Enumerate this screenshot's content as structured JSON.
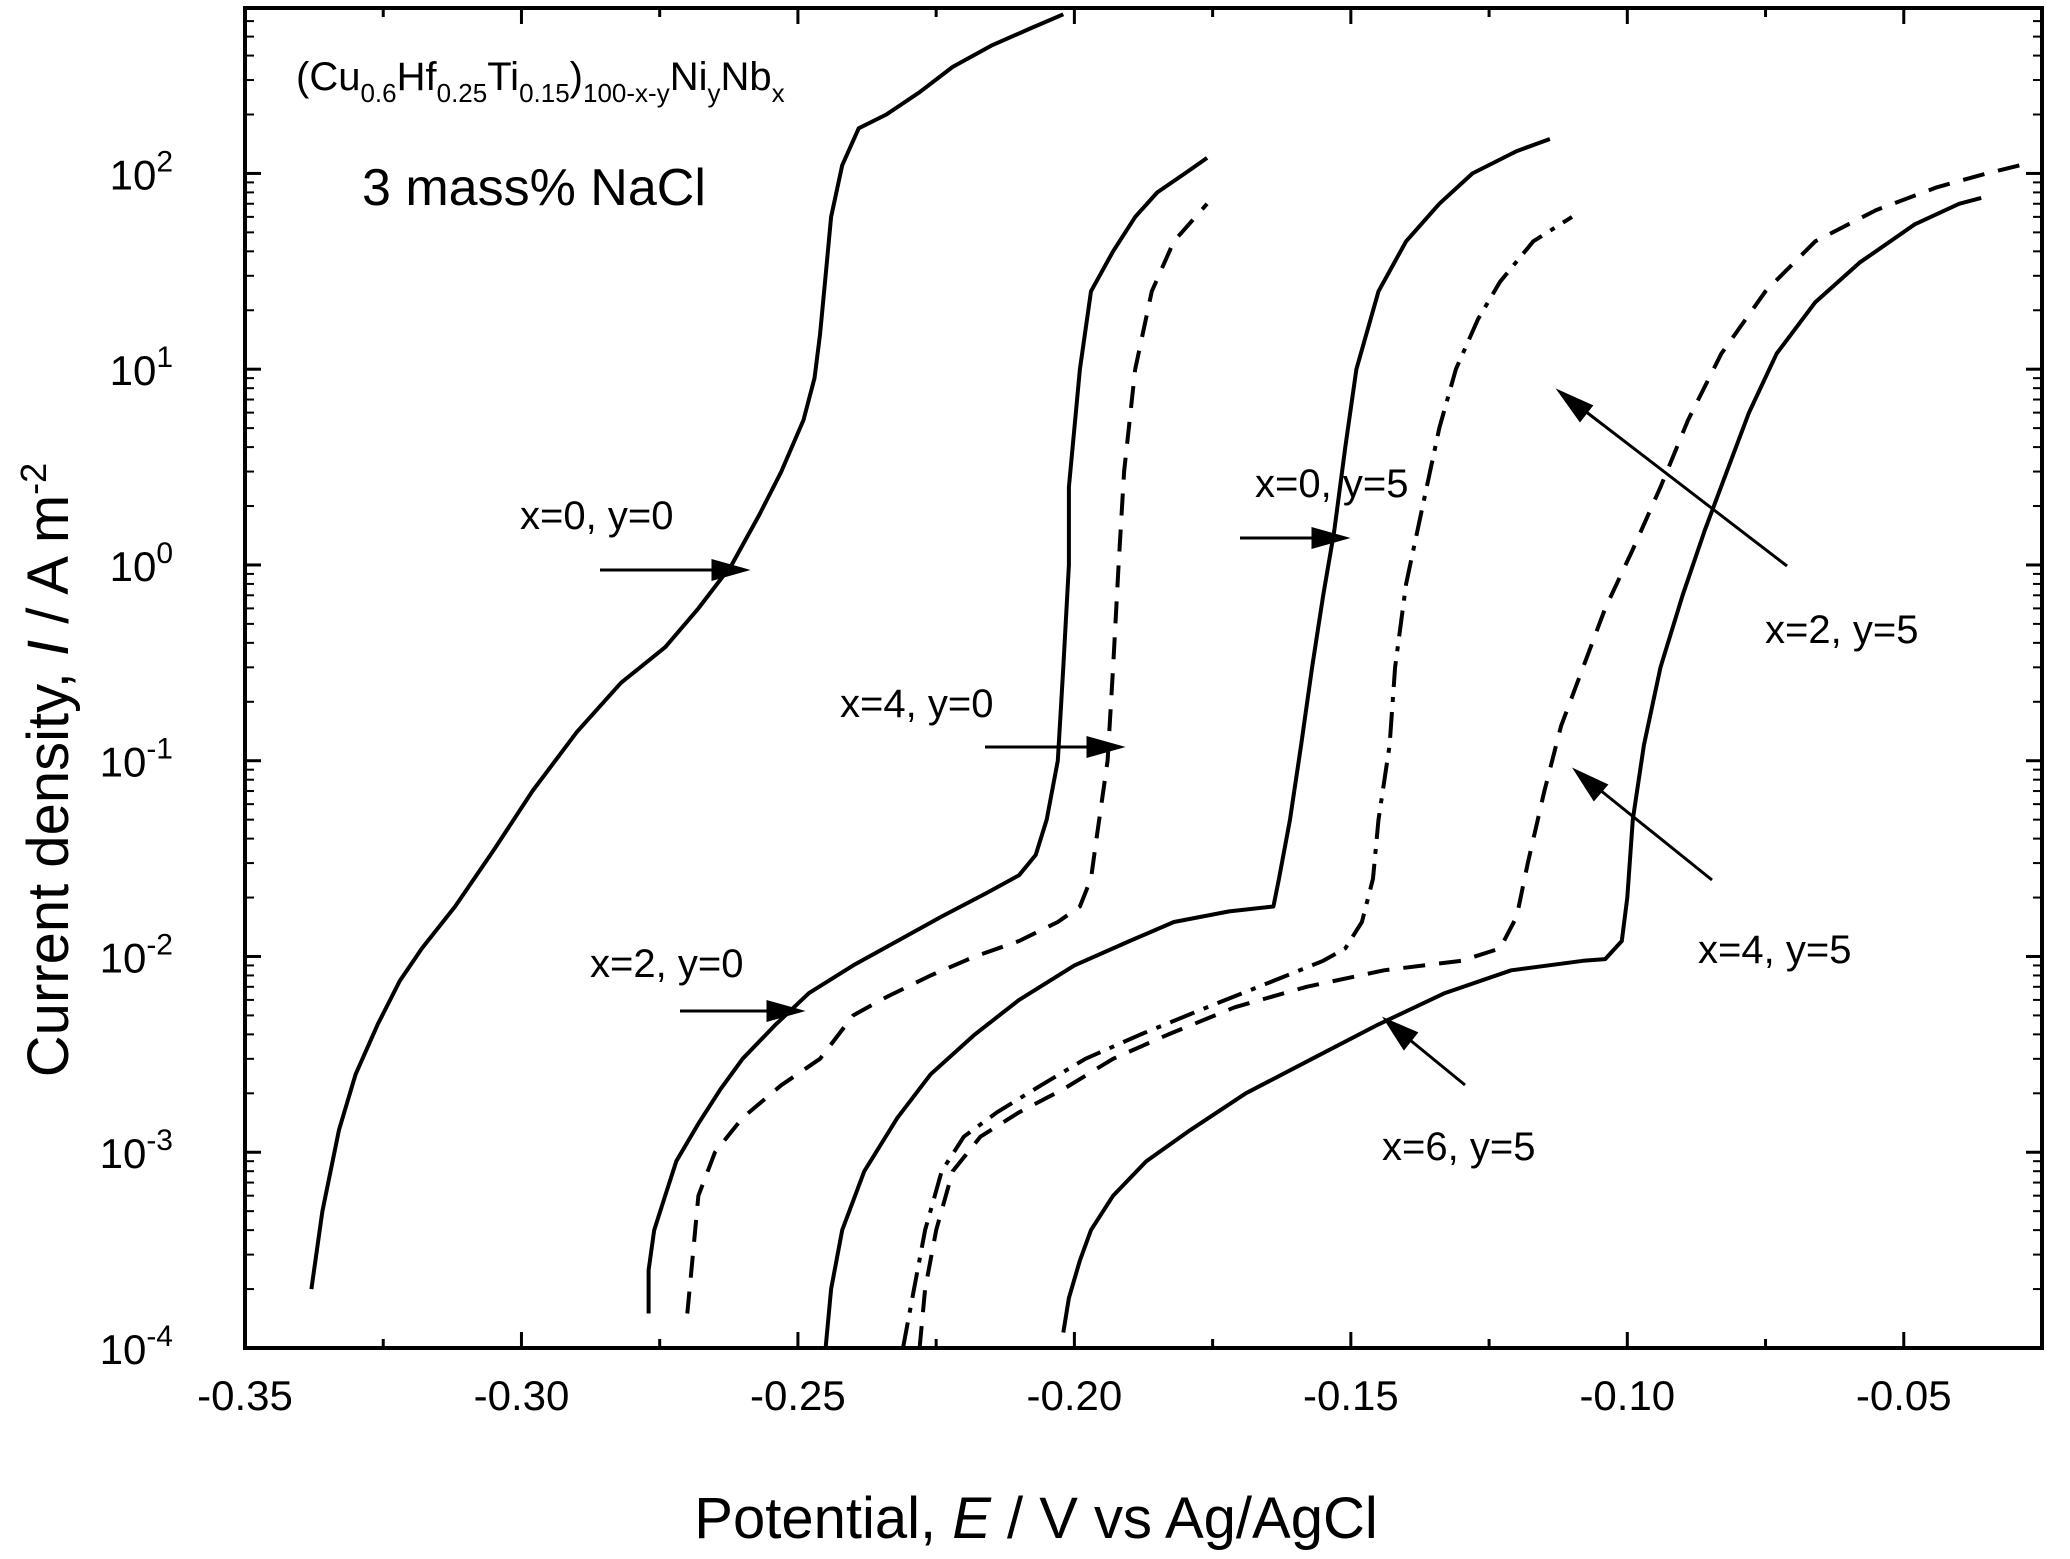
{
  "chart_data": {
    "type": "line",
    "title": "",
    "xlabel": "Potential, E / V vs Ag/AgCl",
    "ylabel": "Current density, I / A m-2",
    "xlim": [
      -0.35,
      -0.025
    ],
    "ylim": [
      0.0001,
      700
    ],
    "yscale": "log",
    "grid": false,
    "legend": "none",
    "x_ticks": [
      "-0.35",
      "-0.30",
      "-0.25",
      "-0.20",
      "-0.15",
      "-0.10",
      "-0.05"
    ],
    "x_tick_values": [
      -0.35,
      -0.3,
      -0.25,
      -0.2,
      -0.15,
      -0.1,
      -0.05
    ],
    "y_ticks": [
      {
        "base": "10",
        "exp": "-4",
        "value": 0.0001
      },
      {
        "base": "10",
        "exp": "-3",
        "value": 0.001
      },
      {
        "base": "10",
        "exp": "-2",
        "value": 0.01
      },
      {
        "base": "10",
        "exp": "-1",
        "value": 0.1
      },
      {
        "base": "10",
        "exp": "0",
        "value": 1
      },
      {
        "base": "10",
        "exp": "1",
        "value": 10
      },
      {
        "base": "10",
        "exp": "2",
        "value": 100
      }
    ],
    "annotations": {
      "composition": "(Cu0.6Hf0.25Ti0.15)100-x-yNiyNbx",
      "solution": "3 mass% NaCl",
      "labels": [
        "x=0, y=0",
        "x=4, y=0",
        "x=2, y=0",
        "x=0, y=5",
        "x=2, y=5",
        "x=4, y=5",
        "x=6, y=5"
      ]
    },
    "series": [
      {
        "id": "x0y0",
        "style": "solid",
        "points": [
          [
            -0.338,
            0.0002
          ],
          [
            -0.336,
            0.0005
          ],
          [
            -0.333,
            0.0013
          ],
          [
            -0.33,
            0.0025
          ],
          [
            -0.326,
            0.0045
          ],
          [
            -0.322,
            0.0075
          ],
          [
            -0.318,
            0.011
          ],
          [
            -0.312,
            0.018
          ],
          [
            -0.305,
            0.035
          ],
          [
            -0.298,
            0.07
          ],
          [
            -0.29,
            0.14
          ],
          [
            -0.282,
            0.25
          ],
          [
            -0.274,
            0.38
          ],
          [
            -0.268,
            0.6
          ],
          [
            -0.262,
            1.0
          ],
          [
            -0.257,
            1.8
          ],
          [
            -0.253,
            3.0
          ],
          [
            -0.249,
            5.5
          ],
          [
            -0.247,
            9
          ],
          [
            -0.246,
            15
          ],
          [
            -0.245,
            30
          ],
          [
            -0.244,
            60
          ],
          [
            -0.242,
            110
          ],
          [
            -0.239,
            170
          ],
          [
            -0.234,
            200
          ],
          [
            -0.228,
            260
          ],
          [
            -0.222,
            350
          ],
          [
            -0.215,
            450
          ],
          [
            -0.208,
            550
          ],
          [
            -0.202,
            650
          ]
        ]
      },
      {
        "id": "x4y0",
        "style": "solid",
        "points": [
          [
            -0.277,
            0.00015
          ],
          [
            -0.277,
            0.00025
          ],
          [
            -0.276,
            0.0004
          ],
          [
            -0.274,
            0.0006
          ],
          [
            -0.272,
            0.0009
          ],
          [
            -0.268,
            0.0014
          ],
          [
            -0.264,
            0.0021
          ],
          [
            -0.26,
            0.003
          ],
          [
            -0.254,
            0.0045
          ],
          [
            -0.248,
            0.0065
          ],
          [
            -0.24,
            0.009
          ],
          [
            -0.232,
            0.012
          ],
          [
            -0.224,
            0.016
          ],
          [
            -0.216,
            0.021
          ],
          [
            -0.21,
            0.026
          ],
          [
            -0.207,
            0.033
          ],
          [
            -0.205,
            0.05
          ],
          [
            -0.203,
            0.1
          ],
          [
            -0.202,
            0.3
          ],
          [
            -0.201,
            1.0
          ],
          [
            -0.201,
            2.5
          ],
          [
            -0.199,
            10
          ],
          [
            -0.197,
            25
          ],
          [
            -0.193,
            40
          ],
          [
            -0.189,
            60
          ],
          [
            -0.185,
            80
          ],
          [
            -0.18,
            100
          ],
          [
            -0.176,
            120
          ]
        ]
      },
      {
        "id": "x2y0",
        "style": "dashed",
        "points": [
          [
            -0.27,
            0.00015
          ],
          [
            -0.269,
            0.0003
          ],
          [
            -0.268,
            0.0006
          ],
          [
            -0.265,
            0.001
          ],
          [
            -0.26,
            0.0015
          ],
          [
            -0.253,
            0.0022
          ],
          [
            -0.246,
            0.003
          ],
          [
            -0.24,
            0.005
          ],
          [
            -0.234,
            0.0062
          ],
          [
            -0.226,
            0.008
          ],
          [
            -0.218,
            0.01
          ],
          [
            -0.21,
            0.012
          ],
          [
            -0.203,
            0.015
          ],
          [
            -0.199,
            0.018
          ],
          [
            -0.197,
            0.025
          ],
          [
            -0.196,
            0.04
          ],
          [
            -0.194,
            0.1
          ],
          [
            -0.193,
            0.3
          ],
          [
            -0.192,
            1.0
          ],
          [
            -0.191,
            3
          ],
          [
            -0.189,
            10
          ],
          [
            -0.186,
            25
          ],
          [
            -0.182,
            45
          ],
          [
            -0.176,
            70
          ]
        ]
      },
      {
        "id": "x0y5",
        "style": "solid",
        "points": [
          [
            -0.245,
            0.0001
          ],
          [
            -0.244,
            0.0002
          ],
          [
            -0.242,
            0.0004
          ],
          [
            -0.238,
            0.0008
          ],
          [
            -0.232,
            0.0015
          ],
          [
            -0.226,
            0.0025
          ],
          [
            -0.218,
            0.004
          ],
          [
            -0.21,
            0.006
          ],
          [
            -0.2,
            0.009
          ],
          [
            -0.19,
            0.012
          ],
          [
            -0.182,
            0.015
          ],
          [
            -0.172,
            0.017
          ],
          [
            -0.164,
            0.018
          ],
          [
            -0.163,
            0.025
          ],
          [
            -0.161,
            0.05
          ],
          [
            -0.159,
            0.12
          ],
          [
            -0.157,
            0.3
          ],
          [
            -0.155,
            0.7
          ],
          [
            -0.153,
            1.5
          ],
          [
            -0.151,
            4
          ],
          [
            -0.149,
            10
          ],
          [
            -0.145,
            25
          ],
          [
            -0.14,
            45
          ],
          [
            -0.134,
            70
          ],
          [
            -0.128,
            100
          ],
          [
            -0.12,
            130
          ],
          [
            -0.114,
            150
          ]
        ]
      },
      {
        "id": "x2y5",
        "style": "dashdot",
        "points": [
          [
            -0.231,
            0.0001
          ],
          [
            -0.229,
            0.0002
          ],
          [
            -0.227,
            0.0004
          ],
          [
            -0.224,
            0.0008
          ],
          [
            -0.22,
            0.0012
          ],
          [
            -0.214,
            0.0016
          ],
          [
            -0.206,
            0.0022
          ],
          [
            -0.198,
            0.003
          ],
          [
            -0.188,
            0.004
          ],
          [
            -0.176,
            0.0055
          ],
          [
            -0.164,
            0.0075
          ],
          [
            -0.155,
            0.0095
          ],
          [
            -0.151,
            0.011
          ],
          [
            -0.148,
            0.015
          ],
          [
            -0.146,
            0.025
          ],
          [
            -0.145,
            0.05
          ],
          [
            -0.143,
            0.12
          ],
          [
            -0.142,
            0.3
          ],
          [
            -0.14,
            0.8
          ],
          [
            -0.137,
            2
          ],
          [
            -0.134,
            5
          ],
          [
            -0.131,
            10
          ],
          [
            -0.127,
            18
          ],
          [
            -0.123,
            28
          ],
          [
            -0.117,
            45
          ],
          [
            -0.11,
            60
          ]
        ]
      },
      {
        "id": "x4y5",
        "style": "dashed",
        "points": [
          [
            -0.228,
            0.0001
          ],
          [
            -0.227,
            0.0002
          ],
          [
            -0.225,
            0.0004
          ],
          [
            -0.222,
            0.0008
          ],
          [
            -0.217,
            0.0012
          ],
          [
            -0.21,
            0.0016
          ],
          [
            -0.202,
            0.0021
          ],
          [
            -0.193,
            0.003
          ],
          [
            -0.183,
            0.004
          ],
          [
            -0.171,
            0.0055
          ],
          [
            -0.158,
            0.007
          ],
          [
            -0.144,
            0.0085
          ],
          [
            -0.13,
            0.0095
          ],
          [
            -0.123,
            0.011
          ],
          [
            -0.12,
            0.016
          ],
          [
            -0.118,
            0.03
          ],
          [
            -0.115,
            0.07
          ],
          [
            -0.112,
            0.15
          ],
          [
            -0.108,
            0.3
          ],
          [
            -0.104,
            0.6
          ],
          [
            -0.099,
            1.2
          ],
          [
            -0.094,
            2.5
          ],
          [
            -0.089,
            5.5
          ],
          [
            -0.083,
            12
          ],
          [
            -0.075,
            25
          ],
          [
            -0.066,
            45
          ],
          [
            -0.055,
            65
          ],
          [
            -0.044,
            85
          ],
          [
            -0.035,
            100
          ],
          [
            -0.029,
            110
          ]
        ]
      },
      {
        "id": "x6y5",
        "style": "solid",
        "points": [
          [
            -0.202,
            0.00012
          ],
          [
            -0.201,
            0.00018
          ],
          [
            -0.199,
            0.00028
          ],
          [
            -0.197,
            0.0004
          ],
          [
            -0.193,
            0.0006
          ],
          [
            -0.187,
            0.0009
          ],
          [
            -0.179,
            0.0013
          ],
          [
            -0.169,
            0.002
          ],
          [
            -0.157,
            0.003
          ],
          [
            -0.145,
            0.0045
          ],
          [
            -0.133,
            0.0065
          ],
          [
            -0.121,
            0.0085
          ],
          [
            -0.108,
            0.0095
          ],
          [
            -0.104,
            0.0097
          ],
          [
            -0.101,
            0.012
          ],
          [
            -0.1,
            0.02
          ],
          [
            -0.099,
            0.05
          ],
          [
            -0.097,
            0.12
          ],
          [
            -0.094,
            0.3
          ],
          [
            -0.09,
            0.7
          ],
          [
            -0.086,
            1.5
          ],
          [
            -0.082,
            3
          ],
          [
            -0.078,
            6
          ],
          [
            -0.073,
            12
          ],
          [
            -0.066,
            22
          ],
          [
            -0.058,
            35
          ],
          [
            -0.048,
            55
          ],
          [
            -0.04,
            70
          ],
          [
            -0.036,
            75
          ]
        ]
      }
    ]
  }
}
